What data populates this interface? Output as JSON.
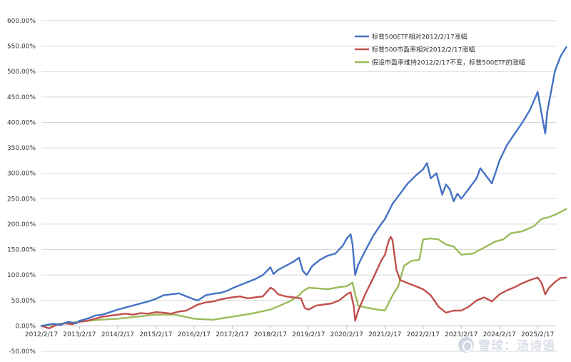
{
  "chart_data": {
    "type": "line",
    "title": "",
    "xlabel": "",
    "ylabel": "",
    "ylim": [
      -50,
      600
    ],
    "y_ticks": [
      "600.00%",
      "550.00%",
      "500.00%",
      "450.00%",
      "400.00%",
      "350.00%",
      "300.00%",
      "250.00%",
      "200.00%",
      "150.00%",
      "100.00%",
      "50.00%",
      "0.00%",
      "-50.00%"
    ],
    "y_tick_values": [
      600,
      550,
      500,
      450,
      400,
      350,
      300,
      250,
      200,
      150,
      100,
      50,
      0,
      -50
    ],
    "x_ticks": [
      "2012/2/17",
      "2013/2/17",
      "2014/2/17",
      "2015/2/17",
      "2016/2/17",
      "2017/2/17",
      "2018/2/17",
      "2019/2/17",
      "2020/2/17",
      "2021/2/17",
      "2022/2/17",
      "2023/2/17",
      "2024/2/17",
      "2025/2/17"
    ],
    "x_tick_values": [
      2012,
      2013,
      2014,
      2015,
      2016,
      2017,
      2018,
      2019,
      2020,
      2021,
      2022,
      2023,
      2024,
      2025
    ],
    "xlim": [
      2012,
      2025.5
    ],
    "grid": "horizontal",
    "legend_position": "top-right",
    "series": [
      {
        "name": "标普500ETF相对2012/2/17涨幅",
        "color": "#4472C4",
        "points": [
          [
            2012.0,
            0
          ],
          [
            2012.3,
            4
          ],
          [
            2012.5,
            2
          ],
          [
            2012.7,
            8
          ],
          [
            2012.9,
            5
          ],
          [
            2013.0,
            10
          ],
          [
            2013.2,
            14
          ],
          [
            2013.4,
            20
          ],
          [
            2013.6,
            22
          ],
          [
            2013.8,
            27
          ],
          [
            2014.0,
            32
          ],
          [
            2014.2,
            36
          ],
          [
            2014.4,
            40
          ],
          [
            2014.6,
            44
          ],
          [
            2014.8,
            48
          ],
          [
            2015.0,
            53
          ],
          [
            2015.2,
            60
          ],
          [
            2015.4,
            62
          ],
          [
            2015.6,
            64
          ],
          [
            2015.8,
            58
          ],
          [
            2016.0,
            52
          ],
          [
            2016.1,
            50
          ],
          [
            2016.3,
            60
          ],
          [
            2016.5,
            63
          ],
          [
            2016.7,
            65
          ],
          [
            2016.9,
            70
          ],
          [
            2017.0,
            74
          ],
          [
            2017.2,
            80
          ],
          [
            2017.4,
            86
          ],
          [
            2017.6,
            92
          ],
          [
            2017.8,
            100
          ],
          [
            2018.0,
            115
          ],
          [
            2018.08,
            102
          ],
          [
            2018.2,
            110
          ],
          [
            2018.4,
            118
          ],
          [
            2018.6,
            126
          ],
          [
            2018.75,
            134
          ],
          [
            2018.85,
            108
          ],
          [
            2018.95,
            100
          ],
          [
            2019.1,
            118
          ],
          [
            2019.3,
            130
          ],
          [
            2019.5,
            138
          ],
          [
            2019.7,
            142
          ],
          [
            2019.9,
            158
          ],
          [
            2020.0,
            172
          ],
          [
            2020.1,
            180
          ],
          [
            2020.15,
            160
          ],
          [
            2020.22,
            100
          ],
          [
            2020.3,
            120
          ],
          [
            2020.5,
            150
          ],
          [
            2020.7,
            178
          ],
          [
            2020.9,
            200
          ],
          [
            2021.0,
            210
          ],
          [
            2021.2,
            240
          ],
          [
            2021.4,
            260
          ],
          [
            2021.6,
            280
          ],
          [
            2021.8,
            295
          ],
          [
            2022.0,
            308
          ],
          [
            2022.1,
            320
          ],
          [
            2022.2,
            290
          ],
          [
            2022.35,
            300
          ],
          [
            2022.5,
            258
          ],
          [
            2022.6,
            278
          ],
          [
            2022.7,
            268
          ],
          [
            2022.8,
            245
          ],
          [
            2022.9,
            260
          ],
          [
            2023.0,
            250
          ],
          [
            2023.2,
            270
          ],
          [
            2023.4,
            290
          ],
          [
            2023.5,
            310
          ],
          [
            2023.6,
            300
          ],
          [
            2023.8,
            280
          ],
          [
            2023.9,
            302
          ],
          [
            2024.0,
            325
          ],
          [
            2024.2,
            356
          ],
          [
            2024.4,
            378
          ],
          [
            2024.6,
            400
          ],
          [
            2024.8,
            425
          ],
          [
            2025.0,
            460
          ],
          [
            2025.05,
            440
          ],
          [
            2025.15,
            398
          ],
          [
            2025.2,
            378
          ],
          [
            2025.25,
            420
          ],
          [
            2025.35,
            460
          ],
          [
            2025.45,
            500
          ],
          [
            2025.6,
            530
          ],
          [
            2025.75,
            548
          ]
        ]
      },
      {
        "name": "标普500市盈率相对2012/2/17涨幅",
        "color": "#C0504D",
        "points": [
          [
            2012.0,
            0
          ],
          [
            2012.2,
            -5
          ],
          [
            2012.4,
            2
          ],
          [
            2012.6,
            5
          ],
          [
            2012.8,
            3
          ],
          [
            2013.0,
            8
          ],
          [
            2013.2,
            10
          ],
          [
            2013.4,
            14
          ],
          [
            2013.6,
            18
          ],
          [
            2013.8,
            20
          ],
          [
            2014.0,
            22
          ],
          [
            2014.2,
            24
          ],
          [
            2014.4,
            22
          ],
          [
            2014.6,
            25
          ],
          [
            2014.8,
            24
          ],
          [
            2015.0,
            27
          ],
          [
            2015.2,
            26
          ],
          [
            2015.4,
            24
          ],
          [
            2015.6,
            28
          ],
          [
            2015.8,
            30
          ],
          [
            2016.0,
            38
          ],
          [
            2016.1,
            42
          ],
          [
            2016.3,
            46
          ],
          [
            2016.5,
            48
          ],
          [
            2016.7,
            52
          ],
          [
            2016.9,
            55
          ],
          [
            2017.0,
            56
          ],
          [
            2017.2,
            58
          ],
          [
            2017.4,
            54
          ],
          [
            2017.6,
            56
          ],
          [
            2017.8,
            58
          ],
          [
            2018.0,
            75
          ],
          [
            2018.08,
            72
          ],
          [
            2018.2,
            62
          ],
          [
            2018.4,
            58
          ],
          [
            2018.6,
            56
          ],
          [
            2018.8,
            54
          ],
          [
            2018.9,
            35
          ],
          [
            2019.0,
            32
          ],
          [
            2019.2,
            40
          ],
          [
            2019.4,
            42
          ],
          [
            2019.6,
            44
          ],
          [
            2019.8,
            50
          ],
          [
            2020.0,
            62
          ],
          [
            2020.1,
            66
          ],
          [
            2020.18,
            40
          ],
          [
            2020.22,
            10
          ],
          [
            2020.3,
            30
          ],
          [
            2020.5,
            65
          ],
          [
            2020.7,
            95
          ],
          [
            2020.9,
            128
          ],
          [
            2021.0,
            140
          ],
          [
            2021.1,
            168
          ],
          [
            2021.15,
            175
          ],
          [
            2021.2,
            168
          ],
          [
            2021.3,
            110
          ],
          [
            2021.4,
            90
          ],
          [
            2021.6,
            84
          ],
          [
            2021.8,
            78
          ],
          [
            2022.0,
            72
          ],
          [
            2022.2,
            60
          ],
          [
            2022.4,
            38
          ],
          [
            2022.6,
            26
          ],
          [
            2022.8,
            30
          ],
          [
            2023.0,
            30
          ],
          [
            2023.2,
            38
          ],
          [
            2023.4,
            50
          ],
          [
            2023.6,
            56
          ],
          [
            2023.8,
            48
          ],
          [
            2024.0,
            62
          ],
          [
            2024.2,
            70
          ],
          [
            2024.4,
            76
          ],
          [
            2024.6,
            84
          ],
          [
            2024.8,
            90
          ],
          [
            2025.0,
            95
          ],
          [
            2025.1,
            85
          ],
          [
            2025.2,
            62
          ],
          [
            2025.3,
            75
          ],
          [
            2025.45,
            86
          ],
          [
            2025.6,
            94
          ],
          [
            2025.75,
            95
          ]
        ]
      },
      {
        "name": "假设市盈率维持2012/2/17不变，标普500ETF的涨幅",
        "color": "#9BBB59",
        "points": [
          [
            2012.0,
            0
          ],
          [
            2012.5,
            4
          ],
          [
            2013.0,
            8
          ],
          [
            2013.5,
            12
          ],
          [
            2014.0,
            14
          ],
          [
            2014.5,
            18
          ],
          [
            2015.0,
            22
          ],
          [
            2015.5,
            22
          ],
          [
            2016.0,
            14
          ],
          [
            2016.5,
            12
          ],
          [
            2017.0,
            18
          ],
          [
            2017.5,
            24
          ],
          [
            2018.0,
            32
          ],
          [
            2018.5,
            48
          ],
          [
            2018.75,
            60
          ],
          [
            2018.85,
            68
          ],
          [
            2019.0,
            75
          ],
          [
            2019.2,
            74
          ],
          [
            2019.5,
            72
          ],
          [
            2019.8,
            76
          ],
          [
            2020.0,
            78
          ],
          [
            2020.15,
            85
          ],
          [
            2020.22,
            62
          ],
          [
            2020.3,
            40
          ],
          [
            2020.5,
            36
          ],
          [
            2020.8,
            32
          ],
          [
            2021.0,
            30
          ],
          [
            2021.2,
            60
          ],
          [
            2021.35,
            78
          ],
          [
            2021.5,
            118
          ],
          [
            2021.7,
            128
          ],
          [
            2021.9,
            130
          ],
          [
            2022.0,
            170
          ],
          [
            2022.2,
            172
          ],
          [
            2022.4,
            170
          ],
          [
            2022.6,
            160
          ],
          [
            2022.8,
            156
          ],
          [
            2023.0,
            140
          ],
          [
            2023.3,
            142
          ],
          [
            2023.6,
            154
          ],
          [
            2023.9,
            166
          ],
          [
            2024.1,
            170
          ],
          [
            2024.3,
            182
          ],
          [
            2024.6,
            186
          ],
          [
            2024.9,
            196
          ],
          [
            2025.1,
            210
          ],
          [
            2025.3,
            214
          ],
          [
            2025.5,
            220
          ],
          [
            2025.75,
            230
          ]
        ]
      }
    ]
  },
  "watermark": {
    "icon": "snowball-logo-icon",
    "text": "雪球：汤诗语"
  }
}
